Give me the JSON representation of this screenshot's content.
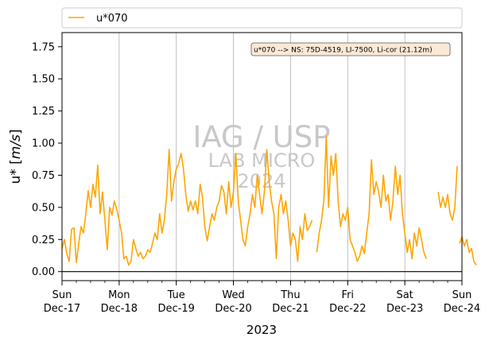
{
  "chart_data": {
    "type": "line",
    "title": "",
    "xlabel": "2023",
    "ylabel": "u* [m/s]",
    "ylim": [
      -0.07,
      1.86
    ],
    "yticks": [
      "0.00",
      "0.25",
      "0.50",
      "0.75",
      "1.00",
      "1.25",
      "1.50",
      "1.75"
    ],
    "xlim": [
      "2023-12-17",
      "2023-12-24"
    ],
    "xticks": [
      {
        "day": "Sun",
        "date": "Dec-17"
      },
      {
        "day": "Mon",
        "date": "Dec-18"
      },
      {
        "day": "Tue",
        "date": "Dec-19"
      },
      {
        "day": "Wed",
        "date": "Dec-20"
      },
      {
        "day": "Thu",
        "date": "Dec-21"
      },
      {
        "day": "Fri",
        "date": "Dec-22"
      },
      {
        "day": "Sat",
        "date": "Dec-23"
      },
      {
        "day": "Sun",
        "date": "Dec-24"
      }
    ],
    "grid": "vertical",
    "legend_placement": "top",
    "zero_line": true,
    "annotation": "u*070 --> NS: 75D-4519, LI-7500, Li-cor (21.12m)",
    "watermark": [
      "IAG / USP",
      "LAB MICRO",
      "2024"
    ],
    "series": [
      {
        "name": "u*070",
        "color": "#ffa500",
        "segments": [
          [
            [
              "2023-12-17 00:00",
              0.18
            ],
            [
              "2023-12-17 01:00",
              0.25
            ],
            [
              "2023-12-17 02:00",
              0.14
            ],
            [
              "2023-12-17 03:00",
              0.08
            ],
            [
              "2023-12-17 04:00",
              0.33
            ],
            [
              "2023-12-17 05:00",
              0.34
            ],
            [
              "2023-12-17 06:00",
              0.07
            ],
            [
              "2023-12-17 07:00",
              0.22
            ],
            [
              "2023-12-17 08:00",
              0.35
            ],
            [
              "2023-12-17 09:00",
              0.3
            ],
            [
              "2023-12-17 10:00",
              0.45
            ],
            [
              "2023-12-17 11:00",
              0.63
            ],
            [
              "2023-12-17 12:00",
              0.5
            ],
            [
              "2023-12-17 13:00",
              0.68
            ],
            [
              "2023-12-17 14:00",
              0.58
            ],
            [
              "2023-12-17 15:00",
              0.83
            ],
            [
              "2023-12-17 16:00",
              0.45
            ],
            [
              "2023-12-17 17:00",
              0.62
            ],
            [
              "2023-12-17 18:00",
              0.4
            ],
            [
              "2023-12-17 19:00",
              0.17
            ],
            [
              "2023-12-17 20:00",
              0.5
            ],
            [
              "2023-12-17 21:00",
              0.44
            ],
            [
              "2023-12-17 22:00",
              0.55
            ],
            [
              "2023-12-17 23:00",
              0.48
            ],
            [
              "2023-12-18 00:00",
              0.4
            ],
            [
              "2023-12-18 01:00",
              0.3
            ],
            [
              "2023-12-18 02:00",
              0.1
            ],
            [
              "2023-12-18 03:00",
              0.12
            ],
            [
              "2023-12-18 04:00",
              0.05
            ],
            [
              "2023-12-18 05:00",
              0.08
            ],
            [
              "2023-12-18 06:00",
              0.25
            ],
            [
              "2023-12-18 07:00",
              0.18
            ],
            [
              "2023-12-18 08:00",
              0.12
            ],
            [
              "2023-12-18 09:00",
              0.15
            ],
            [
              "2023-12-18 10:00",
              0.1
            ],
            [
              "2023-12-18 11:00",
              0.12
            ],
            [
              "2023-12-18 12:00",
              0.17
            ],
            [
              "2023-12-18 13:00",
              0.15
            ],
            [
              "2023-12-18 14:00",
              0.22
            ],
            [
              "2023-12-18 15:00",
              0.3
            ],
            [
              "2023-12-18 16:00",
              0.25
            ],
            [
              "2023-12-18 17:00",
              0.45
            ],
            [
              "2023-12-18 18:00",
              0.3
            ],
            [
              "2023-12-18 19:00",
              0.4
            ],
            [
              "2023-12-18 20:00",
              0.6
            ],
            [
              "2023-12-18 21:00",
              0.95
            ],
            [
              "2023-12-18 22:00",
              0.55
            ],
            [
              "2023-12-18 23:00",
              0.7
            ],
            [
              "2023-12-19 00:00",
              0.8
            ],
            [
              "2023-12-19 01:00",
              0.84
            ],
            [
              "2023-12-19 02:00",
              0.92
            ],
            [
              "2023-12-19 03:00",
              0.8
            ],
            [
              "2023-12-19 04:00",
              0.6
            ],
            [
              "2023-12-19 05:00",
              0.47
            ],
            [
              "2023-12-19 06:00",
              0.55
            ],
            [
              "2023-12-19 07:00",
              0.48
            ],
            [
              "2023-12-19 08:00",
              0.55
            ],
            [
              "2023-12-19 09:00",
              0.45
            ],
            [
              "2023-12-19 10:00",
              0.68
            ],
            [
              "2023-12-19 11:00",
              0.58
            ],
            [
              "2023-12-19 12:00",
              0.35
            ],
            [
              "2023-12-19 13:00",
              0.24
            ],
            [
              "2023-12-19 14:00",
              0.35
            ],
            [
              "2023-12-19 15:00",
              0.45
            ],
            [
              "2023-12-19 16:00",
              0.4
            ],
            [
              "2023-12-19 17:00",
              0.5
            ],
            [
              "2023-12-19 18:00",
              0.55
            ],
            [
              "2023-12-19 19:00",
              0.67
            ],
            [
              "2023-12-19 20:00",
              0.62
            ],
            [
              "2023-12-19 21:00",
              0.45
            ],
            [
              "2023-12-19 22:00",
              0.7
            ],
            [
              "2023-12-19 23:00",
              0.5
            ],
            [
              "2023-12-20 00:00",
              0.62
            ],
            [
              "2023-12-20 01:00",
              0.92
            ],
            [
              "2023-12-20 02:00",
              0.55
            ],
            [
              "2023-12-20 03:00",
              0.4
            ],
            [
              "2023-12-20 04:00",
              0.25
            ],
            [
              "2023-12-20 05:00",
              0.2
            ],
            [
              "2023-12-20 06:00",
              0.35
            ],
            [
              "2023-12-20 07:00",
              0.45
            ],
            [
              "2023-12-20 08:00",
              0.6
            ],
            [
              "2023-12-20 09:00",
              0.5
            ],
            [
              "2023-12-20 10:00",
              0.75
            ],
            [
              "2023-12-20 11:00",
              0.6
            ],
            [
              "2023-12-20 12:00",
              0.45
            ],
            [
              "2023-12-20 13:00",
              0.62
            ],
            [
              "2023-12-20 14:00",
              0.95
            ],
            [
              "2023-12-20 15:00",
              0.7
            ],
            [
              "2023-12-20 16:00",
              0.55
            ],
            [
              "2023-12-20 17:00",
              0.45
            ],
            [
              "2023-12-20 18:00",
              0.1
            ],
            [
              "2023-12-20 19:00",
              0.5
            ],
            [
              "2023-12-20 20:00",
              0.6
            ],
            [
              "2023-12-20 21:00",
              0.45
            ],
            [
              "2023-12-20 22:00",
              0.55
            ],
            [
              "2023-12-20 23:00",
              0.4
            ],
            [
              "2023-12-21 00:00",
              0.2
            ],
            [
              "2023-12-21 01:00",
              0.3
            ],
            [
              "2023-12-21 02:00",
              0.25
            ],
            [
              "2023-12-21 03:00",
              0.08
            ],
            [
              "2023-12-21 04:00",
              0.35
            ],
            [
              "2023-12-21 05:00",
              0.25
            ],
            [
              "2023-12-21 06:00",
              0.45
            ],
            [
              "2023-12-21 07:00",
              0.32
            ],
            [
              "2023-12-21 08:00",
              0.35
            ],
            [
              "2023-12-21 09:00",
              0.4
            ]
          ],
          [
            [
              "2023-12-21 11:00",
              0.15
            ],
            [
              "2023-12-21 12:00",
              0.3
            ],
            [
              "2023-12-21 13:00",
              0.4
            ],
            [
              "2023-12-21 14:00",
              0.55
            ],
            [
              "2023-12-21 15:00",
              1.05
            ],
            [
              "2023-12-21 16:00",
              0.5
            ],
            [
              "2023-12-21 17:00",
              0.9
            ],
            [
              "2023-12-21 18:00",
              0.75
            ],
            [
              "2023-12-21 19:00",
              0.92
            ],
            [
              "2023-12-21 20:00",
              0.55
            ],
            [
              "2023-12-21 21:00",
              0.35
            ],
            [
              "2023-12-21 22:00",
              0.45
            ],
            [
              "2023-12-21 23:00",
              0.4
            ],
            [
              "2023-12-22 00:00",
              0.5
            ],
            [
              "2023-12-22 01:00",
              0.25
            ],
            [
              "2023-12-22 02:00",
              0.2
            ],
            [
              "2023-12-22 03:00",
              0.15
            ],
            [
              "2023-12-22 04:00",
              0.08
            ],
            [
              "2023-12-22 05:00",
              0.12
            ],
            [
              "2023-12-22 06:00",
              0.2
            ],
            [
              "2023-12-22 07:00",
              0.14
            ],
            [
              "2023-12-22 08:00",
              0.3
            ],
            [
              "2023-12-22 09:00",
              0.45
            ],
            [
              "2023-12-22 10:00",
              0.87
            ],
            [
              "2023-12-22 11:00",
              0.6
            ],
            [
              "2023-12-22 12:00",
              0.7
            ],
            [
              "2023-12-22 13:00",
              0.62
            ],
            [
              "2023-12-22 14:00",
              0.5
            ],
            [
              "2023-12-22 15:00",
              0.75
            ],
            [
              "2023-12-22 16:00",
              0.55
            ],
            [
              "2023-12-22 17:00",
              0.6
            ],
            [
              "2023-12-22 18:00",
              0.4
            ],
            [
              "2023-12-22 19:00",
              0.55
            ],
            [
              "2023-12-22 20:00",
              0.82
            ],
            [
              "2023-12-22 21:00",
              0.6
            ],
            [
              "2023-12-22 22:00",
              0.75
            ],
            [
              "2023-12-22 23:00",
              0.45
            ],
            [
              "2023-12-23 00:00",
              0.3
            ],
            [
              "2023-12-23 01:00",
              0.15
            ],
            [
              "2023-12-23 02:00",
              0.25
            ],
            [
              "2023-12-23 03:00",
              0.1
            ],
            [
              "2023-12-23 04:00",
              0.3
            ],
            [
              "2023-12-23 05:00",
              0.2
            ],
            [
              "2023-12-23 06:00",
              0.34
            ],
            [
              "2023-12-23 07:00",
              0.25
            ],
            [
              "2023-12-23 08:00",
              0.15
            ],
            [
              "2023-12-23 09:00",
              0.1
            ]
          ],
          [
            [
              "2023-12-23 14:00",
              0.62
            ],
            [
              "2023-12-23 15:00",
              0.5
            ],
            [
              "2023-12-23 16:00",
              0.58
            ],
            [
              "2023-12-23 17:00",
              0.5
            ],
            [
              "2023-12-23 18:00",
              0.6
            ],
            [
              "2023-12-23 19:00",
              0.45
            ],
            [
              "2023-12-23 20:00",
              0.4
            ],
            [
              "2023-12-23 21:00",
              0.5
            ],
            [
              "2023-12-23 22:00",
              0.82
            ]
          ],
          [
            [
              "2023-12-23 23:00",
              0.22
            ],
            [
              "2023-12-24 00:00",
              0.27
            ],
            [
              "2023-12-24 01:00",
              0.2
            ],
            [
              "2023-12-24 02:00",
              0.25
            ],
            [
              "2023-12-24 03:00",
              0.15
            ],
            [
              "2023-12-24 04:00",
              0.18
            ],
            [
              "2023-12-24 05:00",
              0.08
            ],
            [
              "2023-12-24 06:00",
              0.05
            ]
          ]
        ]
      }
    ]
  }
}
